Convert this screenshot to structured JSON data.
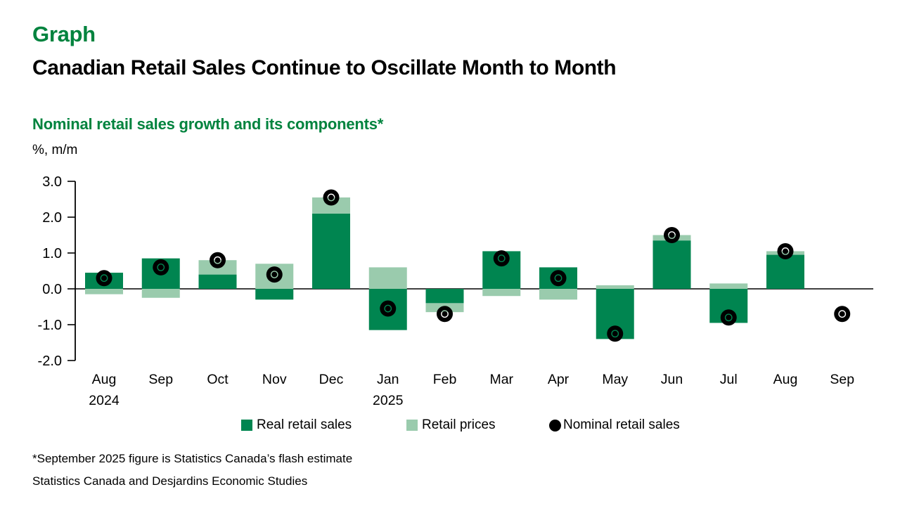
{
  "page": {
    "kicker": "Graph",
    "title": "Canadian Retail Sales Continue to Oscillate Month to Month",
    "subtitle": "Nominal retail sales growth and its components*",
    "axis_unit_label": "%, m/m",
    "footnote": "*September 2025 figure is Statistics Canada’s flash estimate",
    "source": "Statistics Canada and Desjardins Economic Studies"
  },
  "colors": {
    "title_green": "#00833E",
    "real_bar_green": "#008550",
    "prices_bar_green": "#9ACBAD",
    "nominal_dot_black": "#000000",
    "axis_black": "#000000"
  },
  "legend": {
    "items": [
      {
        "label": "Real retail sales",
        "swatch": "square",
        "color": "#008550"
      },
      {
        "label": "Retail prices",
        "swatch": "square",
        "color": "#9ACBAD"
      },
      {
        "label": "Nominal retail sales",
        "swatch": "circle",
        "color": "#000000"
      }
    ]
  },
  "chart_data": {
    "type": "bar",
    "subtype": "stacked-bars-with-scatter-overlay",
    "title": "Nominal retail sales growth and its components*",
    "xlabel": "",
    "ylabel": "%, m/m",
    "ylim": [
      -2.0,
      3.0
    ],
    "yticks": [
      3.0,
      2.0,
      1.0,
      0.0,
      -1.0,
      -2.0
    ],
    "grid": false,
    "legend_position": "bottom",
    "categories": [
      "Aug",
      "Sep",
      "Oct",
      "Nov",
      "Dec",
      "Jan",
      "Feb",
      "Mar",
      "Apr",
      "May",
      "Jun",
      "Jul",
      "Aug",
      "Sep"
    ],
    "year_labels": [
      {
        "index": 0,
        "label": "2024"
      },
      {
        "index": 5,
        "label": "2025"
      }
    ],
    "series": [
      {
        "name": "Real retail sales",
        "type": "bar",
        "stack": true,
        "color": "#008550",
        "values": [
          0.45,
          0.85,
          0.4,
          -0.3,
          2.1,
          -1.15,
          -0.4,
          1.05,
          0.6,
          -1.4,
          1.35,
          -0.95,
          0.95,
          null
        ]
      },
      {
        "name": "Retail prices",
        "type": "bar",
        "stack": true,
        "color": "#9ACBAD",
        "values": [
          -0.15,
          -0.25,
          0.4,
          0.7,
          0.45,
          0.6,
          -0.25,
          -0.2,
          -0.3,
          0.1,
          0.15,
          0.15,
          0.1,
          null
        ]
      },
      {
        "name": "Nominal retail sales",
        "type": "scatter",
        "color": "#000000",
        "values": [
          0.3,
          0.6,
          0.8,
          0.4,
          2.55,
          -0.55,
          -0.7,
          0.85,
          0.3,
          -1.25,
          1.5,
          -0.8,
          1.05,
          -0.7
        ]
      }
    ]
  }
}
